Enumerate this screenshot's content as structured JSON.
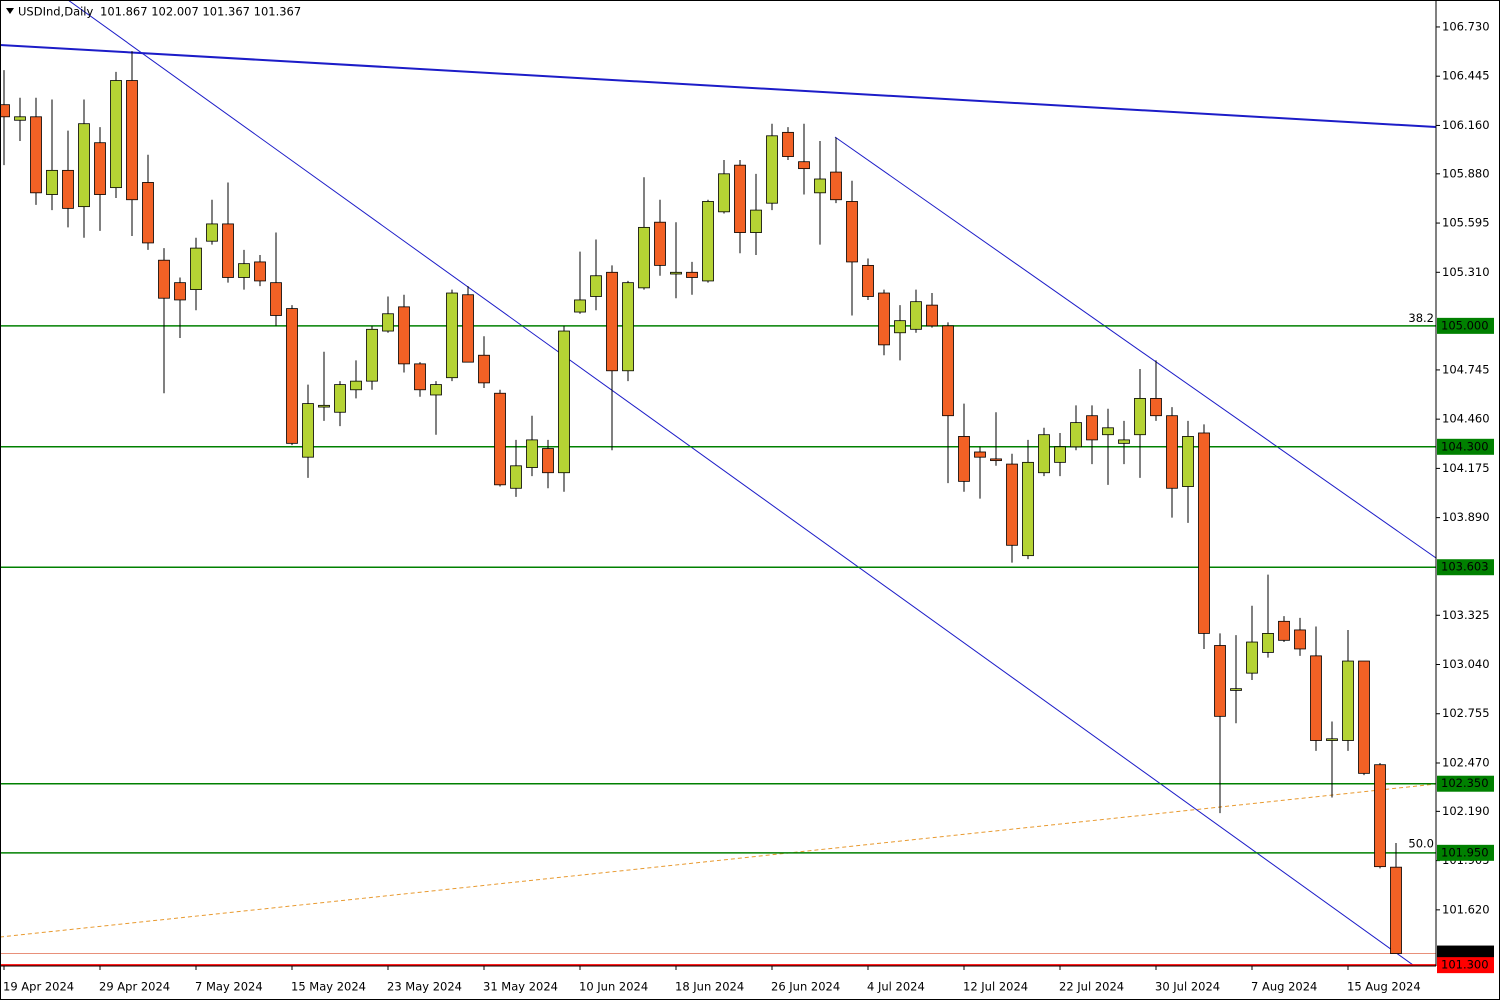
{
  "chart_data": {
    "type": "candlestick",
    "title": "USDInd,Daily",
    "header": "101.867 102.007 101.367 101.367",
    "categories": [
      "19 Apr 2024",
      null,
      null,
      null,
      null,
      null,
      "29 Apr 2024",
      null,
      null,
      null,
      null,
      null,
      "7 May 2024",
      null,
      null,
      null,
      null,
      null,
      "15 May 2024",
      null,
      null,
      null,
      null,
      null,
      "23 May 2024",
      null,
      null,
      null,
      null,
      null,
      "31 May 2024",
      null,
      null,
      null,
      null,
      null,
      "10 Jun 2024",
      null,
      null,
      null,
      null,
      null,
      "18 Jun 2024",
      null,
      null,
      null,
      null,
      null,
      "26 Jun 2024",
      null,
      null,
      null,
      null,
      null,
      "4 Jul 2024",
      null,
      null,
      null,
      null,
      null,
      "12 Jul 2024",
      null,
      null,
      null,
      null,
      null,
      "22 Jul 2024",
      null,
      null,
      null,
      null,
      null,
      "30 Jul 2024",
      null,
      null,
      null,
      null,
      null,
      "7 Aug 2024",
      null,
      null,
      null,
      null,
      null,
      "15 Aug 2024",
      null,
      null,
      null
    ],
    "open": [
      106.28,
      106.19,
      106.21,
      105.76,
      105.9,
      105.69,
      106.06,
      105.8,
      106.42,
      105.83,
      105.38,
      105.25,
      105.21,
      105.49,
      105.59,
      105.28,
      105.37,
      105.25,
      105.1,
      104.24,
      104.53,
      104.5,
      104.63,
      104.68,
      104.97,
      105.11,
      104.78,
      104.6,
      104.7,
      105.18,
      104.83,
      104.61,
      104.06,
      104.18,
      104.29,
      104.15,
      105.08,
      105.17,
      105.31,
      104.74,
      105.22,
      105.6,
      105.3,
      105.31,
      105.26,
      105.66,
      105.93,
      105.54,
      105.71,
      106.12,
      105.95,
      105.77,
      105.89,
      105.72,
      105.35,
      105.19,
      104.96,
      104.98,
      105.12,
      105.0,
      104.36,
      104.27,
      104.23,
      104.2,
      103.67,
      104.15,
      104.21,
      104.3,
      104.48,
      104.37,
      104.32,
      104.37,
      104.58,
      104.48,
      104.07,
      104.38,
      103.15,
      102.89,
      102.99,
      103.11,
      103.29,
      103.24,
      103.09,
      102.6,
      102.6,
      103.06,
      102.46,
      101.867
    ],
    "high": [
      106.48,
      106.32,
      106.32,
      106.31,
      106.13,
      106.31,
      106.15,
      106.47,
      106.59,
      105.99,
      105.45,
      105.28,
      105.51,
      105.73,
      105.83,
      105.44,
      105.41,
      105.54,
      105.12,
      104.66,
      104.85,
      104.68,
      104.8,
      105.0,
      105.17,
      105.18,
      104.79,
      104.68,
      105.21,
      105.23,
      104.94,
      104.63,
      104.34,
      104.48,
      104.34,
      105.0,
      105.43,
      105.5,
      105.35,
      105.26,
      105.86,
      105.73,
      105.6,
      105.37,
      105.73,
      105.96,
      105.96,
      105.88,
      106.17,
      106.15,
      106.17,
      106.07,
      106.09,
      105.84,
      105.39,
      105.21,
      105.12,
      105.21,
      105.19,
      105.02,
      104.55,
      104.3,
      104.5,
      104.26,
      104.34,
      104.41,
      104.38,
      104.54,
      104.54,
      104.52,
      104.45,
      104.75,
      104.8,
      104.53,
      104.45,
      104.43,
      103.22,
      103.21,
      103.38,
      103.56,
      103.32,
      103.31,
      103.26,
      102.71,
      103.24,
      103.06,
      102.47,
      102.007
    ],
    "low": [
      105.93,
      106.07,
      105.7,
      105.67,
      105.57,
      105.51,
      105.55,
      105.74,
      105.52,
      105.44,
      104.61,
      104.93,
      105.09,
      105.47,
      105.25,
      105.21,
      105.23,
      105.0,
      104.31,
      104.12,
      104.45,
      104.42,
      104.58,
      104.63,
      104.96,
      104.73,
      104.59,
      104.37,
      104.68,
      104.79,
      104.64,
      104.07,
      104.01,
      104.13,
      104.06,
      104.04,
      105.07,
      105.09,
      104.28,
      104.68,
      105.21,
      105.29,
      105.16,
      105.18,
      105.25,
      105.65,
      105.42,
      105.41,
      105.67,
      105.96,
      105.76,
      105.47,
      105.71,
      105.06,
      105.15,
      104.83,
      104.8,
      104.96,
      104.99,
      104.09,
      104.04,
      104.0,
      104.19,
      103.63,
      103.65,
      104.13,
      104.13,
      104.28,
      104.2,
      104.08,
      104.2,
      104.12,
      104.45,
      103.89,
      103.86,
      103.13,
      102.18,
      102.7,
      102.95,
      103.08,
      103.17,
      103.09,
      102.54,
      102.27,
      102.54,
      102.4,
      101.86,
      101.367
    ],
    "close": [
      106.21,
      106.21,
      105.77,
      105.9,
      105.68,
      106.17,
      105.76,
      106.42,
      105.73,
      105.48,
      105.16,
      105.15,
      105.45,
      105.59,
      105.28,
      105.36,
      105.26,
      105.06,
      104.32,
      104.55,
      104.54,
      104.66,
      104.68,
      104.98,
      105.07,
      104.78,
      104.63,
      104.66,
      105.19,
      104.79,
      104.67,
      104.08,
      104.19,
      104.34,
      104.15,
      104.97,
      105.15,
      105.29,
      104.74,
      105.25,
      105.57,
      105.35,
      105.31,
      105.28,
      105.72,
      105.88,
      105.54,
      105.67,
      106.1,
      105.98,
      105.91,
      105.85,
      105.73,
      105.37,
      105.17,
      104.89,
      105.03,
      105.14,
      105.0,
      104.48,
      104.1,
      104.24,
      104.22,
      103.73,
      104.21,
      104.37,
      104.3,
      104.44,
      104.34,
      104.41,
      104.34,
      104.58,
      104.48,
      104.06,
      104.36,
      103.22,
      102.74,
      102.9,
      103.17,
      103.22,
      103.18,
      103.13,
      102.6,
      102.61,
      103.06,
      102.41,
      101.87,
      101.367
    ],
    "up_color": "#b5d334",
    "down_color": "#f26125",
    "ylim": [
      101.295,
      106.886
    ],
    "yticks": [
      {
        "value": 106.73,
        "label": "106.730"
      },
      {
        "value": 106.445,
        "label": "106.445"
      },
      {
        "value": 106.16,
        "label": "106.160"
      },
      {
        "value": 105.88,
        "label": "105.880"
      },
      {
        "value": 105.595,
        "label": "105.595"
      },
      {
        "value": 105.31,
        "label": "105.310"
      },
      {
        "value": 104.745,
        "label": "104.745"
      },
      {
        "value": 104.46,
        "label": "104.460"
      },
      {
        "value": 104.175,
        "label": "104.175"
      },
      {
        "value": 103.89,
        "label": "103.890"
      },
      {
        "value": 103.325,
        "label": "103.325"
      },
      {
        "value": 103.04,
        "label": "103.040"
      },
      {
        "value": 102.755,
        "label": "102.755"
      },
      {
        "value": 102.47,
        "label": "102.470"
      },
      {
        "value": 102.19,
        "label": "102.190"
      },
      {
        "value": 101.905,
        "label": "101.905"
      },
      {
        "value": 101.62,
        "label": "101.620"
      }
    ],
    "level_color": "#008000",
    "levels": [
      {
        "value": 105.0,
        "label": "105.000"
      },
      {
        "value": 104.3,
        "label": "104.300"
      },
      {
        "value": 103.603,
        "label": "103.603"
      },
      {
        "value": 102.35,
        "label": "102.350"
      },
      {
        "value": 101.95,
        "label": "101.950"
      }
    ],
    "fib_labels": [
      {
        "value": 105.03,
        "label": "38.2"
      },
      {
        "value": 101.99,
        "label": "50.0"
      }
    ],
    "price_tags": [
      {
        "value": 101.367,
        "label": "101.367",
        "color": "#000000"
      },
      {
        "value": 101.3,
        "label": "101.300",
        "color": "#ff0000"
      }
    ]
  }
}
